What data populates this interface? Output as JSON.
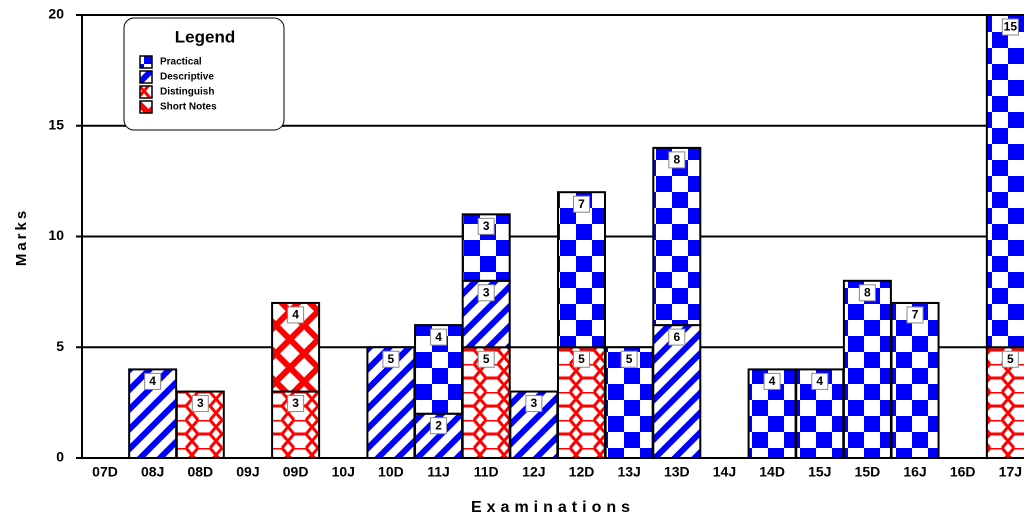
{
  "chart_data": {
    "type": "stacked_bar",
    "xlabel": "Examinations",
    "ylabel": "Marks",
    "legend_title": "Legend",
    "legend": "upper left",
    "categories": [
      "07D",
      "08J",
      "08D",
      "09J",
      "09D",
      "10J",
      "10D",
      "11J",
      "11D",
      "12J",
      "12D",
      "13J",
      "13D",
      "14J",
      "14D",
      "15J",
      "15D",
      "16J",
      "16D",
      "17J"
    ],
    "series": [
      {
        "name": "Practical",
        "color": "#0000ff",
        "pattern": "checker",
        "values": [
          null,
          null,
          null,
          null,
          null,
          null,
          null,
          4,
          3,
          null,
          7,
          5,
          8,
          null,
          4,
          4,
          8,
          7,
          null,
          15
        ]
      },
      {
        "name": "Descriptive",
        "color": "#0000ff",
        "pattern": "diagonal",
        "values": [
          null,
          4,
          null,
          null,
          null,
          null,
          5,
          2,
          3,
          3,
          null,
          null,
          6,
          null,
          null,
          null,
          null,
          null,
          null,
          null
        ]
      },
      {
        "name": "Distinguish",
        "color": "#ff0000",
        "pattern": "hex",
        "values": [
          null,
          null,
          3,
          null,
          3,
          null,
          null,
          null,
          5,
          null,
          5,
          null,
          null,
          null,
          null,
          null,
          null,
          null,
          null,
          5
        ]
      },
      {
        "name": "Short Notes",
        "color": "#ff0000",
        "pattern": "weave",
        "values": [
          null,
          null,
          null,
          null,
          4,
          null,
          null,
          null,
          null,
          null,
          null,
          null,
          null,
          null,
          null,
          null,
          null,
          null,
          null,
          null
        ]
      }
    ],
    "ylim": [
      0,
      20
    ],
    "yticks": [
      0,
      5,
      10,
      15,
      20
    ],
    "grid": true
  }
}
